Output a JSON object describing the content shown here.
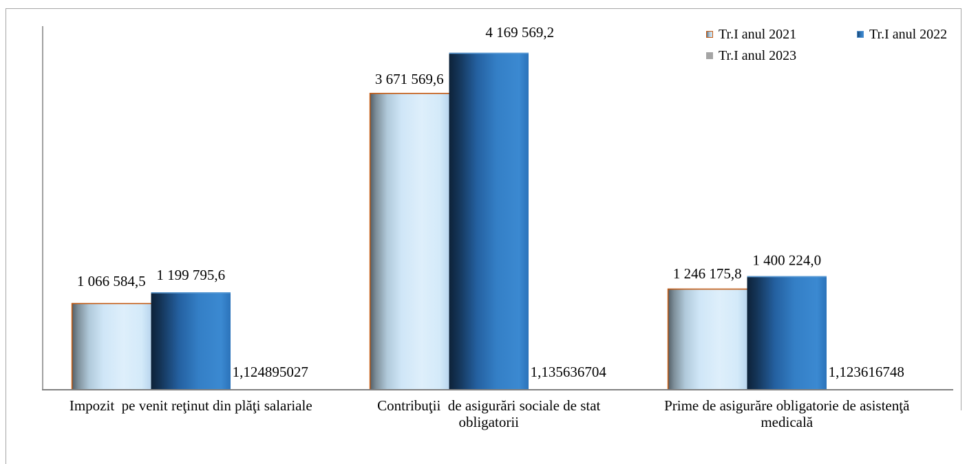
{
  "chart_data": {
    "type": "bar",
    "categories": [
      "Impozit  pe venit reţinut din plăţi salariale",
      "Contribuţii  de asigurări sociale de stat obligatorii",
      "Prime de asigurăre obligatorie de asistenţă medicală"
    ],
    "series": [
      {
        "name": "Tr.I anul 2021",
        "values": [
          1066584.5,
          3671569.6,
          1246175.8
        ],
        "labels": [
          "1 066 584,5",
          "3 671 569,6",
          "1 246 175,8"
        ],
        "color": "#c6e0f4",
        "edge_color": "#c55a11"
      },
      {
        "name": "Tr.I anul 2022",
        "values": [
          1199795.6,
          4169569.2,
          1400224.0
        ],
        "labels": [
          "1 199 795,6",
          "4 169 569,2",
          "1 400 224,0"
        ],
        "color": "#2e75b6",
        "edge_color": "#5b9bd5"
      },
      {
        "name": "Tr.I anul 2023",
        "values": [
          1.124895027,
          1.135636704,
          1.123616748
        ],
        "labels": [
          "1,124895027",
          "1,135636704",
          "1,123616748"
        ],
        "color": "#a5a5a5"
      }
    ],
    "ylim": [
      0,
      4500000
    ],
    "grid": false,
    "legend": "top-right"
  }
}
